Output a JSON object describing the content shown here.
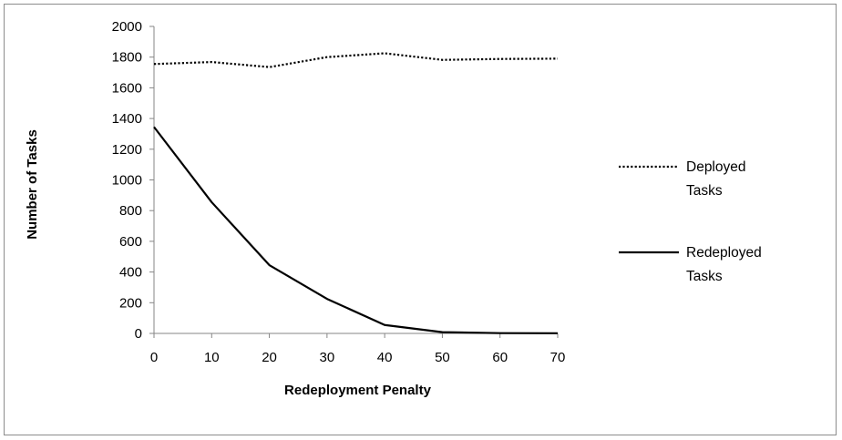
{
  "chart_data": {
    "type": "line",
    "title": "",
    "xlabel": "Redeployment Penalty",
    "ylabel": "Number of Tasks",
    "x": [
      0,
      10,
      20,
      30,
      40,
      50,
      60,
      70
    ],
    "xlim": [
      0,
      70
    ],
    "ylim": [
      0,
      2000
    ],
    "x_ticks": [
      "0",
      "10",
      "20",
      "30",
      "40",
      "50",
      "60",
      "70"
    ],
    "y_ticks": [
      "0",
      "200",
      "400",
      "600",
      "800",
      "1000",
      "1200",
      "1400",
      "1600",
      "1800",
      "2000"
    ],
    "grid": false,
    "legend_position": "right",
    "series": [
      {
        "name": "Deployed Tasks",
        "name_lines": [
          "Deployed",
          "Tasks"
        ],
        "line_style": "dotted",
        "color": "#000000",
        "values": [
          1755,
          1768,
          1735,
          1800,
          1825,
          1782,
          1788,
          1790
        ]
      },
      {
        "name": "Redeployed Tasks",
        "name_lines": [
          "Redeployed",
          "Tasks"
        ],
        "line_style": "solid",
        "color": "#000000",
        "values": [
          1345,
          855,
          445,
          225,
          55,
          8,
          2,
          1
        ]
      }
    ]
  }
}
